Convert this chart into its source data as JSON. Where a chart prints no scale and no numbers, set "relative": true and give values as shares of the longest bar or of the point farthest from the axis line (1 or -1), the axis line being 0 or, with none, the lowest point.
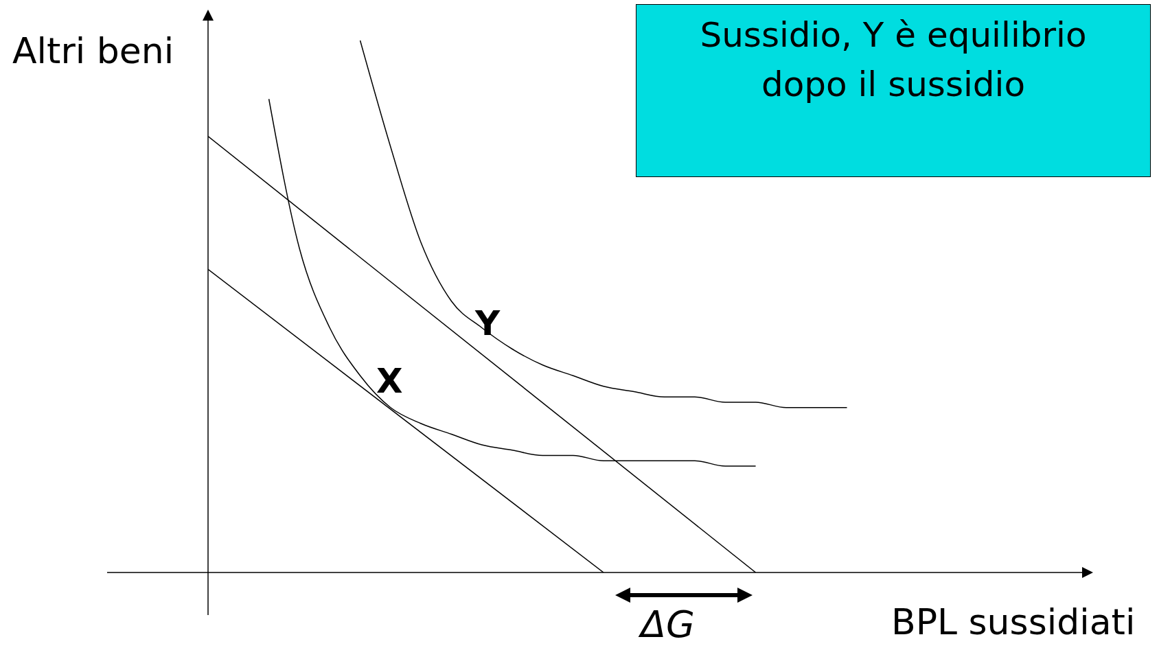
{
  "chart_data": {
    "type": "line",
    "relative": true,
    "xlabel": "BPL sussidiati",
    "ylabel": "Altri beni",
    "marker": "none",
    "categories": [
      null,
      null,
      null,
      null,
      null,
      null,
      null,
      null,
      null,
      null,
      null,
      null,
      null,
      null,
      null,
      null,
      null,
      null,
      null,
      null,
      null,
      null,
      null,
      null,
      null,
      null,
      null,
      null,
      null,
      null
    ],
    "series": [
      {
        "color": "#000000",
        "values": [
          0.57,
          null,
          null,
          null,
          null,
          null,
          null,
          null,
          null,
          null,
          null,
          null,
          null,
          0,
          null,
          null,
          null,
          null,
          null,
          null,
          null,
          null,
          null,
          null,
          null,
          null,
          null,
          null,
          null,
          null
        ]
      },
      {
        "color": "#000000",
        "values": [
          0.82,
          null,
          null,
          null,
          null,
          null,
          null,
          null,
          null,
          null,
          null,
          null,
          null,
          null,
          null,
          null,
          null,
          null,
          0,
          null,
          null,
          null,
          null,
          null,
          null,
          null,
          null,
          null,
          null,
          null
        ]
      },
      {
        "color": "#000000",
        "values": [
          null,
          null,
          0.89,
          0.61,
          0.46,
          0.37,
          0.31,
          0.28,
          0.26,
          0.24,
          0.23,
          0.22,
          0.22,
          0.21,
          0.21,
          0.21,
          0.21,
          0.2,
          0.2,
          null,
          null,
          null,
          null,
          null,
          null,
          null,
          null,
          null,
          null,
          null
        ]
      },
      {
        "color": "#000000",
        "values": [
          null,
          null,
          null,
          null,
          null,
          1,
          0.8,
          0.62,
          0.51,
          0.46,
          0.42,
          0.39,
          0.37,
          0.35,
          0.34,
          0.33,
          0.33,
          0.32,
          0.32,
          0.31,
          0.31,
          0.31,
          null,
          null,
          null,
          null,
          null,
          null,
          null,
          null
        ]
      }
    ],
    "annotations": [
      "Sussidio, Y è equilibrio dopo il sussidio",
      "X",
      "Y",
      "ΔG"
    ]
  }
}
